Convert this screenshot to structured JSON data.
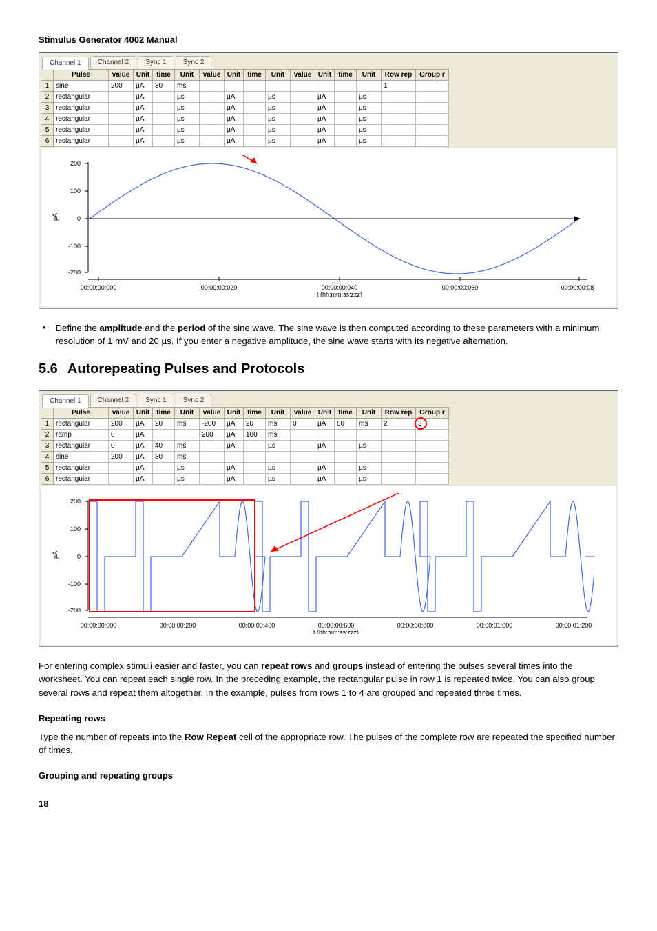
{
  "docTitle": "Stimulus Generator 4002 Manual",
  "screenshot1": {
    "tabs": [
      "Channel 1",
      "Channel 2",
      "Sync 1",
      "Sync 2"
    ],
    "activeTab": 0,
    "columns": [
      "",
      "Pulse",
      "value",
      "Unit",
      "time",
      "Unit",
      "value",
      "Unit",
      "time",
      "Unit",
      "value",
      "Unit",
      "time",
      "Unit",
      "Row rep",
      "Group r"
    ],
    "rows": [
      [
        "1",
        "sine",
        "200",
        "µA",
        "80",
        "ms",
        "",
        "",
        "",
        "",
        "",
        "",
        "",
        "",
        "1",
        ""
      ],
      [
        "2",
        "rectangular",
        "",
        "µA",
        "",
        "µs",
        "",
        "µA",
        "",
        "µs",
        "",
        "µA",
        "",
        "µs",
        "",
        ""
      ],
      [
        "3",
        "rectangular",
        "",
        "µA",
        "",
        "µs",
        "",
        "µA",
        "",
        "µs",
        "",
        "µA",
        "",
        "µs",
        "",
        ""
      ],
      [
        "4",
        "rectangular",
        "",
        "µA",
        "",
        "µs",
        "",
        "µA",
        "",
        "µs",
        "",
        "µA",
        "",
        "µs",
        "",
        ""
      ],
      [
        "5",
        "rectangular",
        "",
        "µA",
        "",
        "µs",
        "",
        "µA",
        "",
        "µs",
        "",
        "µA",
        "",
        "µs",
        "",
        ""
      ],
      [
        "6",
        "rectangular",
        "",
        "µA",
        "",
        "µs",
        "",
        "µA",
        "",
        "µs",
        "",
        "µA",
        "",
        "µs",
        "",
        ""
      ]
    ],
    "chart": {
      "yTicks": [
        -200,
        -100,
        0,
        100,
        200
      ],
      "yLabel": "µA",
      "xTicks": [
        "00:00:00:000",
        "00:00:00:020",
        "00:00:00:040",
        "00:00:00:060",
        "00:00:00:080"
      ],
      "xLabel": "t (hh:mm:ss:zzz)",
      "arrowColor": "#ff0000",
      "sineColor": "#4169e1",
      "axisColor": "#000000"
    }
  },
  "bulletText": {
    "pre": "Define the ",
    "amp": "amplitude",
    "mid1": " and the ",
    "per": "period",
    "rest": " of the sine wave. The sine wave is then computed according to these parameters with a minimum resolution of 1 mV and 20 µs. If you enter a negative amplitude, the sine wave starts with its negative alternation."
  },
  "section": {
    "num": "5.6",
    "title": "Autorepeating Pulses and Protocols"
  },
  "screenshot2": {
    "tabs": [
      "Channel 1",
      "Channel 2",
      "Sync 1",
      "Sync 2"
    ],
    "activeTab": 0,
    "columns": [
      "",
      "Pulse",
      "value",
      "Unit",
      "time",
      "Unit",
      "value",
      "Unit",
      "time",
      "Unit",
      "value",
      "Unit",
      "time",
      "Unit",
      "Row rep",
      "Group r"
    ],
    "rows": [
      [
        "1",
        "rectangular",
        "200",
        "µA",
        "20",
        "ms",
        "-200",
        "µA",
        "20",
        "ms",
        "0",
        "µA",
        "80",
        "ms",
        "2",
        "3"
      ],
      [
        "2",
        "ramp",
        "0",
        "µA",
        "",
        "",
        "200",
        "µA",
        "100",
        "ms",
        "",
        "",
        "",
        "",
        "",
        ""
      ],
      [
        "3",
        "rectangular",
        "0",
        "µA",
        "40",
        "ms",
        "",
        "µA",
        "",
        "µs",
        "",
        "µA",
        "",
        "µs",
        "",
        ""
      ],
      [
        "4",
        "sine",
        "200",
        "µA",
        "80",
        "ms",
        "",
        "",
        "",
        "",
        "",
        "",
        "",
        "",
        "",
        ""
      ],
      [
        "5",
        "rectangular",
        "",
        "µA",
        "",
        "µs",
        "",
        "µA",
        "",
        "µs",
        "",
        "µA",
        "",
        "µs",
        "",
        ""
      ],
      [
        "6",
        "rectangular",
        "",
        "µA",
        "",
        "µs",
        "",
        "µA",
        "",
        "µs",
        "",
        "µA",
        "",
        "µs",
        "",
        ""
      ]
    ],
    "chart": {
      "yTicks": [
        -200,
        -100,
        0,
        100,
        200
      ],
      "yLabel": "µA",
      "xTicks": [
        "00:00:00:000",
        "00:00:00:200",
        "00:00:00:400",
        "00:00:00:600",
        "00:00:00:800",
        "00:00:01:000",
        "00:00:01:200"
      ],
      "xLabel": "t (hh:mm:ss:zzz)",
      "arrowColor": "#ff0000",
      "waveColor": "#4169e1",
      "highlightColor": "#ff0000"
    }
  },
  "para2": {
    "t1": "For entering complex stimuli easier and faster, you can ",
    "b1": "repeat rows",
    "t2": " and ",
    "b2": "groups",
    "t3": " instead of entering the pulses several times into the worksheet. You can repeat each single row. In the preceding example, the rectangular pulse in row 1 is repeated twice. You can also group several rows and repeat them altogether. In the example, pulses from rows 1 to 4 are grouped and repeated three times."
  },
  "sub1": "Repeating rows",
  "para3": {
    "t1": "Type the number of repeats into the ",
    "b1": "Row Repeat",
    "t2": " cell of the appropriate row. The pulses of the complete row are repeated the specified number of times."
  },
  "sub2": "Grouping and repeating groups",
  "pageNum": "18"
}
